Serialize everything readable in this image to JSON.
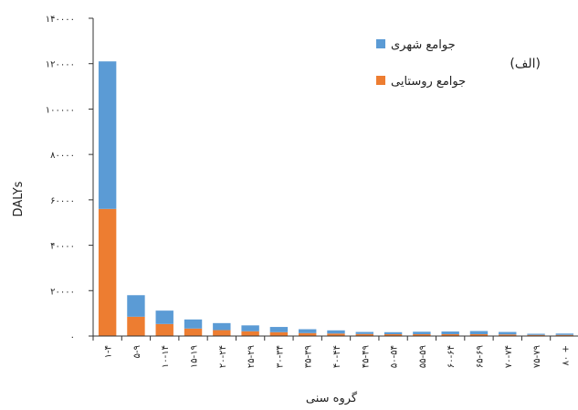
{
  "chart_data": {
    "type": "bar",
    "stacked": true,
    "categories": [
      "۱-۴",
      "۵-۹",
      "۱۰-۱۴",
      "۱۵-۱۹",
      "۲۰-۲۴",
      "۲۵-۲۹",
      "۳۰-۳۴",
      "۳۵-۳۹",
      "۴۰-۴۴",
      "۴۵-۴۹",
      "۵۰-۵۴",
      "۵۵-۵۹",
      "۶۰-۶۴",
      "۶۵-۶۹",
      "۷۰-۷۴",
      "۷۵-۷۹",
      "۸۰ +"
    ],
    "series": [
      {
        "name": "جوامع روستایی",
        "color": "#ED7D31",
        "values": [
          56000,
          8500,
          5300,
          3300,
          2600,
          2100,
          1700,
          1300,
          1100,
          900,
          800,
          800,
          800,
          800,
          700,
          500,
          500
        ]
      },
      {
        "name": "جوامع شهری",
        "color": "#5B9BD5",
        "values": [
          65000,
          9500,
          5900,
          4000,
          3100,
          2600,
          2300,
          1700,
          1400,
          900,
          900,
          1100,
          1200,
          1400,
          1100,
          500,
          600
        ]
      }
    ],
    "xlabel": "گروه سنی",
    "ylabel": "DALYs",
    "ylim": [
      0,
      140000
    ],
    "yticks": [
      "۰",
      "۲۰۰۰۰",
      "۴۰۰۰۰",
      "۶۰۰۰۰",
      "۸۰۰۰۰",
      "۱۰۰۰۰۰",
      "۱۲۰۰۰۰",
      "۱۴۰۰۰۰"
    ],
    "ytick_values": [
      0,
      20000,
      40000,
      60000,
      80000,
      100000,
      120000,
      140000
    ],
    "panel_label": "(الف)",
    "legend_position": "top-right",
    "grid": false
  }
}
